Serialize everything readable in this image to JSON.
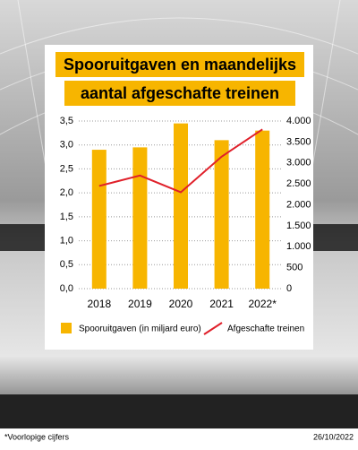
{
  "chart_data": {
    "type": "bar",
    "title": [
      "Spooruitgaven en maandelijks",
      "aantal afgeschafte treinen"
    ],
    "categories": [
      "2018",
      "2019",
      "2020",
      "2021",
      "2022*"
    ],
    "series": [
      {
        "name": "Spooruitgaven (in miljard euro)",
        "type": "bar",
        "axis": "y",
        "color": "#f7b500",
        "values": [
          2.9,
          2.95,
          3.45,
          3.1,
          3.3
        ]
      },
      {
        "name": "Afgeschafte treinen",
        "type": "line",
        "axis": "y2",
        "color": "#e0202a",
        "values": [
          2450,
          2700,
          2300,
          3150,
          3800
        ]
      }
    ],
    "ylim": [
      0,
      3.5
    ],
    "yticks": [
      {
        "value": 0,
        "label": "0,0"
      },
      {
        "value": 0.5,
        "label": "0,5"
      },
      {
        "value": 1,
        "label": "1,0"
      },
      {
        "value": 1.5,
        "label": "1,5"
      },
      {
        "value": 2,
        "label": "2,0"
      },
      {
        "value": 2.5,
        "label": "2,5"
      },
      {
        "value": 3,
        "label": "3,0"
      },
      {
        "value": 3.5,
        "label": "3,5"
      }
    ],
    "y2lim": [
      0,
      4000
    ],
    "y2ticks": [
      0,
      500,
      {
        "value": 1000,
        "label": "1.000"
      },
      {
        "value": 1500,
        "label": "1.500"
      },
      {
        "value": 2000,
        "label": "2.000"
      },
      {
        "value": 2500,
        "label": "2.500"
      },
      {
        "value": 3000,
        "label": "3.000"
      },
      {
        "value": 3500,
        "label": "3.500"
      },
      {
        "value": 4000,
        "label": "4.000"
      }
    ],
    "grid": true,
    "note": "*Voorlopige cijfers",
    "date": "26/10/2022"
  }
}
